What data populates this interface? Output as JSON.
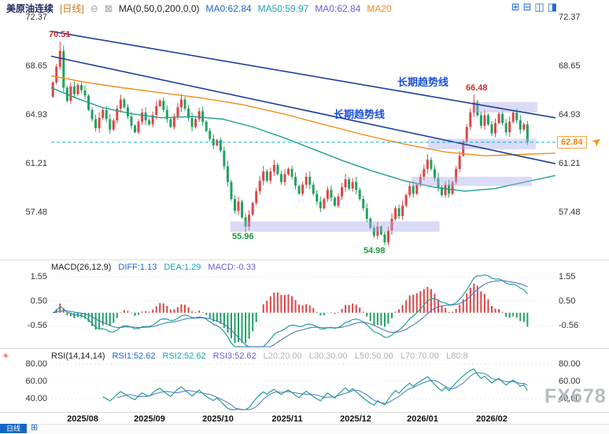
{
  "header": {
    "symbol": "美原油连续",
    "period": "[日线]",
    "collapse_icon": "⊖",
    "indicator_icon": "⊠",
    "ma_formula": "MA(0,50,0,200,0,0)",
    "ma_values": [
      "MA0:62.84",
      "MA50:59.97",
      "MA0:62.84",
      "MA20"
    ],
    "layout_icons": [
      "⊞",
      "⊟",
      "◫",
      "◨"
    ]
  },
  "axes": {
    "main": [
      "72.37",
      "68.65",
      "64.93",
      "61.21",
      "57.48"
    ],
    "macd": [
      "1.55",
      "0.50",
      "-0.56"
    ],
    "rsi": [
      "80.00",
      "60.00",
      "40.00"
    ],
    "x": [
      "2025/08",
      "2025/09",
      "2025/10",
      "2025/11",
      "2025/12",
      "2026/01",
      "2026/02"
    ]
  },
  "price_tag": "62.84",
  "annotations": {
    "high1": "70.51",
    "high2": "66.48",
    "low1": "55.96",
    "low2": "54.98",
    "trendline_label": "长期趋势线"
  },
  "macd_header": {
    "title": "MACD(26,12,9)",
    "diff": "DIFF:1.13",
    "dea": "DEA:1.29",
    "macd": "MACD:-0.33"
  },
  "rsi_header": {
    "title": "RSI(14,14,14)",
    "rsi1": "RSI1:52.62",
    "rsi2": "RSI2:52.62",
    "rsi3": "RSI3:52.62",
    "levels": "L20:20.00   L30:30.00   L50:50.00   L70:70.00   L80:8"
  },
  "footer": {
    "tab_label": "日线",
    "tab_icon": "⊞"
  },
  "watermark": "FX678",
  "chart_data": {
    "type": "candlestick",
    "symbol": "美原油连续",
    "interval": "日线",
    "title": "美原油连续 日线",
    "price_ticks": [
      72.37,
      68.65,
      64.93,
      61.21,
      57.48
    ],
    "price_range": [
      53.8,
      72.8
    ],
    "x_tick_labels": [
      "2025/08",
      "2025/09",
      "2025/10",
      "2025/11",
      "2025/12",
      "2026/01",
      "2026/02"
    ],
    "up_color": "#dc4646",
    "down_color": "#21a163",
    "first_open": 66.3,
    "closes": [
      67.4,
      68.6,
      69.8,
      67.0,
      66.0,
      67.1,
      66.5,
      67.2,
      66.8,
      66.4,
      65.3,
      64.6,
      63.9,
      64.7,
      65.3,
      64.6,
      63.8,
      64.5,
      65.4,
      66.1,
      65.5,
      64.8,
      64.1,
      63.6,
      64.4,
      65.1,
      64.5,
      64.2,
      64.9,
      65.6,
      66.0,
      65.3,
      64.6,
      64.0,
      64.8,
      65.5,
      66.1,
      65.4,
      64.7,
      64.0,
      64.6,
      65.2,
      64.4,
      63.7,
      63.1,
      62.6,
      63.0,
      62.2,
      61.0,
      59.8,
      58.5,
      57.6,
      58.3,
      57.1,
      56.4,
      57.3,
      58.2,
      59.1,
      59.9,
      60.6,
      59.9,
      60.6,
      61.1,
      60.4,
      59.8,
      60.4,
      60.8,
      60.2,
      59.5,
      58.9,
      59.6,
      60.2,
      59.6,
      58.9,
      58.3,
      57.8,
      58.5,
      59.2,
      58.6,
      58.0,
      58.7,
      59.4,
      60.0,
      59.3,
      59.8,
      59.2,
      58.5,
      57.8,
      57.0,
      56.3,
      55.7,
      56.4,
      55.8,
      55.2,
      56.1,
      57.0,
      57.8,
      57.2,
      58.0,
      58.8,
      59.5,
      58.9,
      59.6,
      60.2,
      60.8,
      61.5,
      60.8,
      60.1,
      59.4,
      58.8,
      59.6,
      58.9,
      59.8,
      60.8,
      61.8,
      62.9,
      64.0,
      65.1,
      65.9,
      64.9,
      64.1,
      64.9,
      64.2,
      63.5,
      64.3,
      65.0,
      64.3,
      63.6,
      64.4,
      65.1,
      64.5,
      63.8,
      64.2,
      62.84
    ],
    "extreme_overrides": {
      "2": {
        "high": 70.51
      },
      "54": {
        "low": 55.96
      },
      "93": {
        "low": 54.98
      },
      "118": {
        "high": 66.48
      }
    },
    "last_price": 62.84,
    "dashed_level": 62.84,
    "trend_lines": [
      {
        "x1": 0,
        "price1": 71.3,
        "x2": 1,
        "price2": 64.7,
        "label": "长期趋势线"
      },
      {
        "x1": 0,
        "price1": 69.4,
        "x2": 1,
        "price2": 61.2,
        "label": "长期趋势线"
      }
    ],
    "ma_lines": [
      {
        "name": "MA200",
        "color": "#ef8e1d",
        "points": [
          [
            0,
            67.9
          ],
          [
            0.07,
            67.4
          ],
          [
            0.14,
            67.0
          ],
          [
            0.22,
            66.6
          ],
          [
            0.3,
            66.2
          ],
          [
            0.38,
            65.7
          ],
          [
            0.46,
            65.0
          ],
          [
            0.54,
            64.2
          ],
          [
            0.62,
            63.4
          ],
          [
            0.7,
            62.7
          ],
          [
            0.78,
            62.1
          ],
          [
            0.86,
            61.8
          ],
          [
            0.93,
            61.9
          ],
          [
            1,
            62.0
          ]
        ]
      },
      {
        "name": "MA50",
        "color": "#1fa08c",
        "points": [
          [
            0,
            67.0
          ],
          [
            0.05,
            66.2
          ],
          [
            0.1,
            65.5
          ],
          [
            0.16,
            65.0
          ],
          [
            0.22,
            64.7
          ],
          [
            0.28,
            64.8
          ],
          [
            0.34,
            64.6
          ],
          [
            0.4,
            64.0
          ],
          [
            0.46,
            63.2
          ],
          [
            0.52,
            62.3
          ],
          [
            0.58,
            61.4
          ],
          [
            0.64,
            60.6
          ],
          [
            0.7,
            59.9
          ],
          [
            0.76,
            59.4
          ],
          [
            0.82,
            59.1
          ],
          [
            0.88,
            59.3
          ],
          [
            0.94,
            59.8
          ],
          [
            1,
            60.3
          ]
        ]
      }
    ],
    "zones": [
      {
        "x1": 0.355,
        "x2": 0.77,
        "p_low": 56.0,
        "p_high": 56.8
      },
      {
        "x1": 0.715,
        "x2": 0.953,
        "p_low": 59.5,
        "p_high": 60.2
      },
      {
        "x1": 0.747,
        "x2": 0.961,
        "p_low": 62.3,
        "p_high": 63.1
      },
      {
        "x1": 0.836,
        "x2": 0.964,
        "p_low": 65.1,
        "p_high": 65.9
      }
    ],
    "point_annotations": [
      {
        "text": "70.51",
        "type": "high"
      },
      {
        "text": "66.48",
        "type": "high"
      },
      {
        "text": "55.96",
        "type": "low"
      },
      {
        "text": "54.98",
        "type": "low"
      }
    ],
    "macd": {
      "params": [
        26,
        12,
        9
      ],
      "diff": 1.13,
      "dea": 1.29,
      "macd": -0.33,
      "axis_ticks": [
        1.55,
        0.5,
        -0.56
      ]
    },
    "rsi": {
      "params": [
        14,
        14,
        14
      ],
      "rsi1": 52.62,
      "rsi2": 52.62,
      "rsi3": 52.62,
      "axis_ticks": [
        80,
        60,
        40
      ]
    }
  }
}
